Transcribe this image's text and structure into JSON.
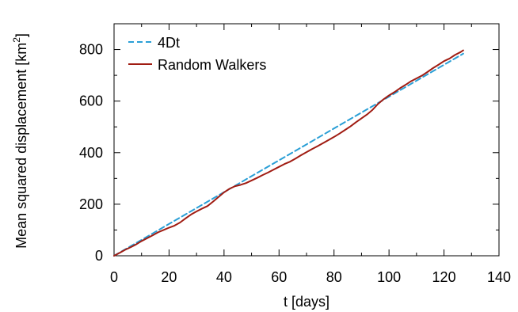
{
  "chart_data": {
    "type": "line",
    "title": "",
    "xlabel": "t [days]",
    "ylabel": "Mean squared displacement [km²]",
    "ylabel_main": "Mean squared displacement [km",
    "ylabel_sup": "2",
    "ylabel_close": "]",
    "xlim": [
      0,
      140
    ],
    "ylim": [
      0,
      900
    ],
    "x_ticks": [
      0,
      20,
      40,
      60,
      80,
      100,
      120,
      140
    ],
    "x_tick_labels": [
      "0",
      "20",
      "40",
      "60",
      "80",
      "100",
      "120",
      "140"
    ],
    "y_ticks": [
      0,
      200,
      400,
      600,
      800
    ],
    "y_tick_labels": [
      "0",
      "200",
      "400",
      "600",
      "800"
    ],
    "grid": false,
    "legend_position": "top-left",
    "series": [
      {
        "name": "4Dt",
        "style": "dashed",
        "color": "#2a9fd6",
        "x": [
          0,
          127
        ],
        "y": [
          0,
          784
        ]
      },
      {
        "name": "Random Walkers",
        "style": "solid",
        "color": "#a01c12",
        "x": [
          0,
          2,
          4,
          6,
          8,
          10,
          12,
          14,
          16,
          18,
          20,
          22,
          24,
          26,
          28,
          30,
          32,
          34,
          36,
          38,
          40,
          42,
          44,
          46,
          48,
          50,
          52,
          54,
          56,
          58,
          60,
          62,
          64,
          66,
          68,
          70,
          72,
          74,
          76,
          78,
          80,
          82,
          84,
          86,
          88,
          90,
          92,
          94,
          96,
          98,
          100,
          102,
          104,
          106,
          108,
          110,
          112,
          114,
          116,
          118,
          120,
          122,
          124,
          126,
          127
        ],
        "y": [
          0,
          11,
          23,
          33,
          44,
          57,
          68,
          79,
          91,
          100,
          109,
          117,
          129,
          145,
          160,
          172,
          183,
          193,
          210,
          228,
          246,
          260,
          270,
          275,
          282,
          292,
          302,
          313,
          323,
          334,
          345,
          356,
          365,
          377,
          390,
          402,
          414,
          425,
          437,
          449,
          461,
          474,
          488,
          502,
          518,
          533,
          548,
          566,
          589,
          607,
          622,
          635,
          650,
          663,
          677,
          688,
          699,
          713,
          728,
          741,
          755,
          765,
          779,
          790,
          797
        ]
      }
    ]
  }
}
